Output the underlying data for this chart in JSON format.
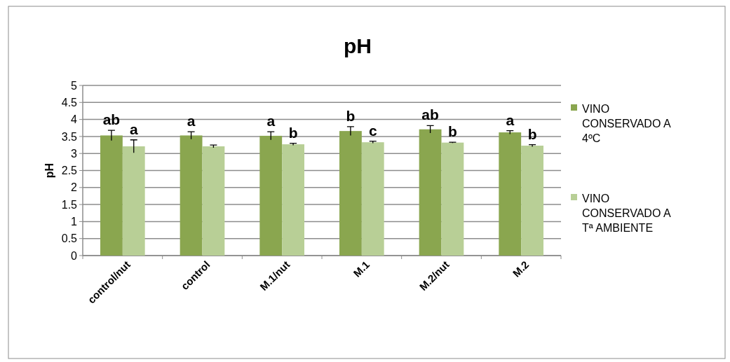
{
  "chart_data": {
    "type": "bar",
    "title": "pH",
    "ylabel": "pH",
    "categories": [
      "control/nut",
      "control",
      "M.1/nut",
      "M.1",
      "M.2/nut",
      "M.2"
    ],
    "series": [
      {
        "name": "VINO CONSERVADO A 4ºC",
        "color": "#8aa64f",
        "values": [
          3.53,
          3.53,
          3.52,
          3.66,
          3.71,
          3.62
        ],
        "errors": [
          0.15,
          0.11,
          0.12,
          0.13,
          0.11,
          0.05
        ],
        "value_labels": [
          "ab",
          "a",
          "a",
          "b",
          "ab",
          "a"
        ]
      },
      {
        "name": "VINO CONSERVADO A Tª AMBIENTE",
        "color": "#b8cf96",
        "values": [
          3.21,
          3.21,
          3.27,
          3.33,
          3.32,
          3.23
        ],
        "errors": [
          0.19,
          0.04,
          0.03,
          0.03,
          0.01,
          0.03
        ],
        "value_labels": [
          "a",
          null,
          "b",
          "c",
          "b",
          "b"
        ]
      }
    ],
    "ylim": [
      0,
      5
    ],
    "yticks": [
      0,
      0.5,
      1,
      1.5,
      2,
      2.5,
      3,
      3.5,
      4,
      4.5,
      5
    ],
    "grid": "y",
    "legend": "right"
  }
}
